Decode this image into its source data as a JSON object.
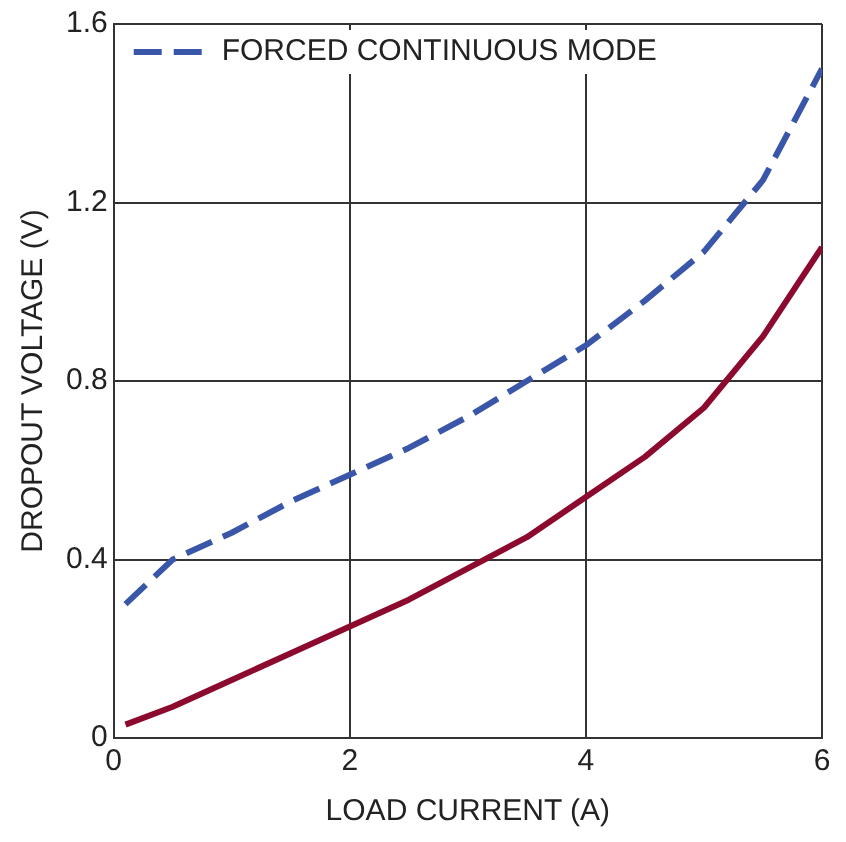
{
  "chart_data": {
    "type": "line",
    "xlabel": "LOAD CURRENT (A)",
    "ylabel": "DROPOUT VOLTAGE (V)",
    "x": [
      0.1,
      0.5,
      1,
      1.5,
      2,
      2.5,
      3,
      3.5,
      4,
      4.5,
      5,
      5.5,
      6
    ],
    "series": [
      {
        "color": "#8b0a2e",
        "line_style": "solid",
        "values": [
          0.03,
          0.07,
          0.13,
          0.19,
          0.25,
          0.31,
          0.38,
          0.45,
          0.54,
          0.63,
          0.74,
          0.9,
          1.1
        ]
      },
      {
        "name": "FORCED CONTINUOUS MODE",
        "color": "#3a56a8",
        "line_style": "dashed",
        "values": [
          0.3,
          0.4,
          0.46,
          0.53,
          0.59,
          0.65,
          0.72,
          0.8,
          0.88,
          0.98,
          1.09,
          1.25,
          1.5
        ]
      }
    ],
    "xlim": [
      0,
      6
    ],
    "xticks": [
      0,
      2,
      4,
      6
    ],
    "ylim": [
      0,
      1.6
    ],
    "yticks": [
      0,
      0.4,
      0.8,
      1.2,
      1.6
    ],
    "grid": true,
    "legend": "top left",
    "marker": "none"
  }
}
